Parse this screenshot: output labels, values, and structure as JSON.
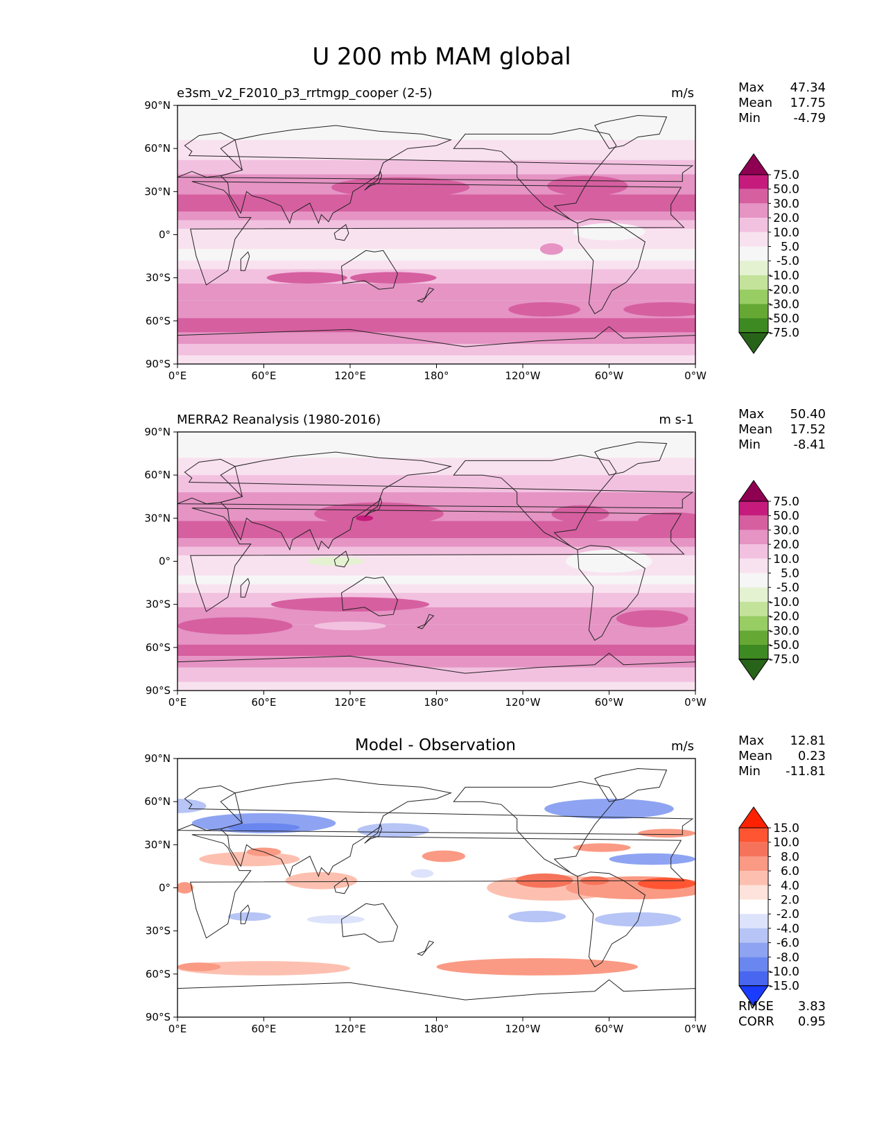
{
  "figure": {
    "title": "U 200 mb MAM global"
  },
  "axes": {
    "lat_labels": [
      "90°N",
      "60°N",
      "30°N",
      "0°",
      "30°S",
      "60°S",
      "90°S"
    ],
    "lon_labels": [
      "0°E",
      "60°E",
      "120°E",
      "180°",
      "120°W",
      "60°W",
      "0°W"
    ]
  },
  "panels": [
    {
      "id": "test",
      "title": "e3sm_v2_F2010_p3_rrtmgp_cooper (2-5)",
      "title_centered": false,
      "units": "m/s",
      "stats": [
        {
          "label": "Max",
          "value": "47.34"
        },
        {
          "label": "Mean",
          "value": "17.75"
        },
        {
          "label": "Min",
          "value": "-4.79"
        }
      ],
      "levels": [
        "75.0",
        "50.0",
        "30.0",
        "20.0",
        "10.0",
        "5.0",
        "-5.0",
        "-10.0",
        "-20.0",
        "-30.0",
        "-50.0",
        "-75.0"
      ],
      "colors": [
        "#8e0152",
        "#c51b7d",
        "#d65fa0",
        "#e594c4",
        "#f2c1e0",
        "#f9e2ef",
        "#f6f6f6",
        "#e4f2d2",
        "#c3e39b",
        "#97cd62",
        "#66a834",
        "#3e8a22",
        "#276419"
      ],
      "bands": [
        {
          "lat": 82,
          "band": 6
        },
        {
          "lat": 66,
          "band": 5
        },
        {
          "lat": 52,
          "band": 4
        },
        {
          "lat": 42,
          "band": 3
        },
        {
          "lat": 28,
          "band": 2
        },
        {
          "lat": 16,
          "band": 3
        },
        {
          "lat": 10,
          "band": 4
        },
        {
          "lat": 4,
          "band": 5
        },
        {
          "lat": -10,
          "band": 6
        },
        {
          "lat": -18,
          "band": 5
        },
        {
          "lat": -24,
          "band": 4
        },
        {
          "lat": -34,
          "band": 3
        },
        {
          "lat": -46,
          "band": 3
        },
        {
          "lat": -58,
          "band": 2
        },
        {
          "lat": -68,
          "band": 3
        },
        {
          "lat": -76,
          "band": 4
        },
        {
          "lat": -84,
          "band": 5
        },
        {
          "lat": -90,
          "band": 6
        }
      ],
      "blobs": [
        {
          "lon": 155,
          "lat": 33,
          "rlon": 48,
          "rlat": 7,
          "band": 2
        },
        {
          "lon": 225,
          "lat": 22,
          "rlon": 14,
          "rlat": 4,
          "band": 2
        },
        {
          "lon": 285,
          "lat": 34,
          "rlon": 28,
          "rlat": 7,
          "band": 2
        },
        {
          "lon": 90,
          "lat": -30,
          "rlon": 28,
          "rlat": 4,
          "band": 2
        },
        {
          "lon": 150,
          "lat": -30,
          "rlon": 30,
          "rlat": 4,
          "band": 2
        },
        {
          "lon": 255,
          "lat": -52,
          "rlon": 25,
          "rlat": 5,
          "band": 2
        },
        {
          "lon": 340,
          "lat": -52,
          "rlon": 30,
          "rlat": 5,
          "band": 2
        },
        {
          "lon": 300,
          "lat": 2,
          "rlon": 25,
          "rlat": 6,
          "band": 6
        },
        {
          "lon": 260,
          "lat": -10,
          "rlon": 8,
          "rlat": 4,
          "band": 3
        }
      ]
    },
    {
      "id": "reference",
      "title": "MERRA2 Reanalysis (1980-2016)",
      "title_centered": false,
      "units": "m s-1",
      "stats": [
        {
          "label": "Max",
          "value": "50.40"
        },
        {
          "label": "Mean",
          "value": "17.52"
        },
        {
          "label": "Min",
          "value": "-8.41"
        }
      ],
      "levels": [
        "75.0",
        "50.0",
        "30.0",
        "20.0",
        "10.0",
        "5.0",
        "-5.0",
        "-10.0",
        "-20.0",
        "-30.0",
        "-50.0",
        "-75.0"
      ],
      "colors": [
        "#8e0152",
        "#c51b7d",
        "#d65fa0",
        "#e594c4",
        "#f2c1e0",
        "#f9e2ef",
        "#f6f6f6",
        "#e4f2d2",
        "#c3e39b",
        "#97cd62",
        "#66a834",
        "#3e8a22",
        "#276419"
      ],
      "bands": [
        {
          "lat": 82,
          "band": 6
        },
        {
          "lat": 72,
          "band": 5
        },
        {
          "lat": 60,
          "band": 4
        },
        {
          "lat": 48,
          "band": 3
        },
        {
          "lat": 28,
          "band": 2
        },
        {
          "lat": 16,
          "band": 3
        },
        {
          "lat": 10,
          "band": 4
        },
        {
          "lat": 4,
          "band": 5
        },
        {
          "lat": -10,
          "band": 6
        },
        {
          "lat": -16,
          "band": 5
        },
        {
          "lat": -22,
          "band": 4
        },
        {
          "lat": -32,
          "band": 3
        },
        {
          "lat": -44,
          "band": 3
        },
        {
          "lat": -58,
          "band": 2
        },
        {
          "lat": -66,
          "band": 3
        },
        {
          "lat": -74,
          "band": 4
        },
        {
          "lat": -84,
          "band": 5
        },
        {
          "lat": -90,
          "band": 6
        }
      ],
      "blobs": [
        {
          "lon": 140,
          "lat": 33,
          "rlon": 45,
          "rlat": 8,
          "band": 2
        },
        {
          "lon": 130,
          "lat": 30,
          "rlon": 6,
          "rlat": 2,
          "band": 1
        },
        {
          "lon": 280,
          "lat": 33,
          "rlon": 20,
          "rlat": 6,
          "band": 2
        },
        {
          "lon": 345,
          "lat": 28,
          "rlon": 25,
          "rlat": 6,
          "band": 2
        },
        {
          "lon": 120,
          "lat": -30,
          "rlon": 55,
          "rlat": 5,
          "band": 2
        },
        {
          "lon": 330,
          "lat": -40,
          "rlon": 25,
          "rlat": 6,
          "band": 2
        },
        {
          "lon": 40,
          "lat": -45,
          "rlon": 40,
          "rlat": 6,
          "band": 2
        },
        {
          "lon": 110,
          "lat": 0,
          "rlon": 20,
          "rlat": 3,
          "band": 7
        },
        {
          "lon": 300,
          "lat": 0,
          "rlon": 30,
          "rlat": 8,
          "band": 6
        },
        {
          "lon": 120,
          "lat": -45,
          "rlon": 25,
          "rlat": 3,
          "band": 4
        }
      ]
    },
    {
      "id": "difference",
      "title": "Model - Observation",
      "title_centered": true,
      "units": "m/s",
      "stats": [
        {
          "label": "Max",
          "value": "12.81"
        },
        {
          "label": "Mean",
          "value": "0.23"
        },
        {
          "label": "Min",
          "value": "-11.81"
        }
      ],
      "levels": [
        "15.0",
        "10.0",
        "8.0",
        "6.0",
        "4.0",
        "2.0",
        "-2.0",
        "-4.0",
        "-6.0",
        "-8.0",
        "-10.0",
        "-15.0"
      ],
      "colors": [
        "#ff2200",
        "#ff5533",
        "#f5735a",
        "#fa9a84",
        "#fdc0b0",
        "#fde3db",
        "#ffffff",
        "#dde3fb",
        "#b6c4f6",
        "#8ea4f2",
        "#6a86ef",
        "#4866f0",
        "#1a3cff"
      ],
      "bands": [
        {
          "lat": 90,
          "band": 6
        }
      ],
      "blobs": [
        {
          "lon": 60,
          "lat": 45,
          "rlon": 50,
          "rlat": 7,
          "band": 9
        },
        {
          "lon": 60,
          "lat": 42,
          "rlon": 25,
          "rlat": 3,
          "band": 10
        },
        {
          "lon": 150,
          "lat": 40,
          "rlon": 25,
          "rlat": 5,
          "band": 8
        },
        {
          "lon": 300,
          "lat": 55,
          "rlon": 45,
          "rlat": 7,
          "band": 9
        },
        {
          "lon": 0,
          "lat": 57,
          "rlon": 20,
          "rlat": 5,
          "band": 8
        },
        {
          "lon": 330,
          "lat": 20,
          "rlon": 30,
          "rlat": 4,
          "band": 9
        },
        {
          "lon": 320,
          "lat": -22,
          "rlon": 30,
          "rlat": 5,
          "band": 8
        },
        {
          "lon": 250,
          "lat": -20,
          "rlon": 20,
          "rlat": 4,
          "band": 8
        },
        {
          "lon": 50,
          "lat": -20,
          "rlon": 15,
          "rlat": 3,
          "band": 8
        },
        {
          "lon": 110,
          "lat": -22,
          "rlon": 20,
          "rlat": 3,
          "band": 7
        },
        {
          "lon": 170,
          "lat": 10,
          "rlon": 8,
          "rlat": 3,
          "band": 7
        },
        {
          "lon": 50,
          "lat": 20,
          "rlon": 35,
          "rlat": 5,
          "band": 4
        },
        {
          "lon": 60,
          "lat": 25,
          "rlon": 12,
          "rlat": 3,
          "band": 3
        },
        {
          "lon": 100,
          "lat": 5,
          "rlon": 25,
          "rlat": 6,
          "band": 4
        },
        {
          "lon": 185,
          "lat": 22,
          "rlon": 15,
          "rlat": 4,
          "band": 3
        },
        {
          "lon": 260,
          "lat": 0,
          "rlon": 45,
          "rlat": 9,
          "band": 4
        },
        {
          "lon": 255,
          "lat": 5,
          "rlon": 20,
          "rlat": 5,
          "band": 2
        },
        {
          "lon": 320,
          "lat": 0,
          "rlon": 50,
          "rlat": 8,
          "band": 3
        },
        {
          "lon": 340,
          "lat": 3,
          "rlon": 20,
          "rlat": 4,
          "band": 1
        },
        {
          "lon": 290,
          "lat": 5,
          "rlon": 10,
          "rlat": 3,
          "band": 2
        },
        {
          "lon": 340,
          "lat": 38,
          "rlon": 20,
          "rlat": 3,
          "band": 3
        },
        {
          "lon": 295,
          "lat": 28,
          "rlon": 20,
          "rlat": 3,
          "band": 3
        },
        {
          "lon": 250,
          "lat": -55,
          "rlon": 70,
          "rlat": 6,
          "band": 3
        },
        {
          "lon": 60,
          "lat": -56,
          "rlon": 60,
          "rlat": 5,
          "band": 4
        },
        {
          "lon": 15,
          "lat": -55,
          "rlon": 15,
          "rlat": 3,
          "band": 3
        },
        {
          "lon": 5,
          "lat": 0,
          "rlon": 6,
          "rlat": 4,
          "band": 3
        }
      ],
      "footer_stats": [
        {
          "label": "RMSE",
          "value": "3.83"
        },
        {
          "label": "CORR",
          "value": "0.95"
        }
      ]
    }
  ]
}
